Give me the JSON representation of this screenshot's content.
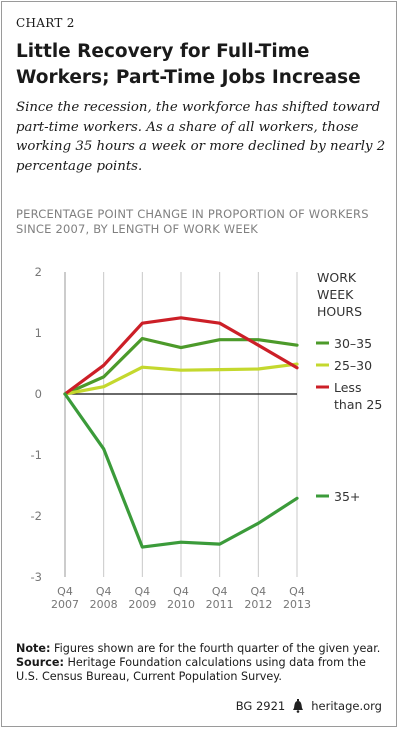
{
  "header": {
    "chart_label": "CHART 2",
    "title": "Little Recovery for Full-Time Workers; Part-Time Jobs Increase",
    "subtitle": "Since the recession, the workforce has shifted toward part-time workers. As a share of all workers, those working 35 hours a week or more declined by nearly 2 percentage points."
  },
  "chart_data": {
    "type": "line",
    "ylabel": "PERCENTAGE POINT CHANGE IN PROPORTION OF WORKERS SINCE 2007, BY LENGTH OF WORK WEEK",
    "xlabel": "",
    "categories": [
      {
        "q": "Q4",
        "year": "2007"
      },
      {
        "q": "Q4",
        "year": "2008"
      },
      {
        "q": "Q4",
        "year": "2009"
      },
      {
        "q": "Q4",
        "year": "2010"
      },
      {
        "q": "Q4",
        "year": "2011"
      },
      {
        "q": "Q4",
        "year": "2012"
      },
      {
        "q": "Q4",
        "year": "2013"
      }
    ],
    "ylim": [
      -3,
      2
    ],
    "yticks": [
      "2",
      "1",
      "0",
      "-1",
      "-2",
      "-3"
    ],
    "grid": false,
    "legend_title": "WORK WEEK HOURS",
    "legend_placement": "right",
    "series": [
      {
        "name": "30–35",
        "color": "#4c9a2a",
        "values": [
          0,
          0.28,
          0.91,
          0.76,
          0.89,
          0.89,
          0.8
        ]
      },
      {
        "name": "25–30",
        "color": "#c4d82e",
        "values": [
          0,
          0.12,
          0.44,
          0.39,
          0.4,
          0.41,
          0.49
        ]
      },
      {
        "name": "Less than 25",
        "color": "#cc1f27",
        "values": [
          0,
          0.47,
          1.16,
          1.25,
          1.16,
          0.8,
          0.43
        ]
      },
      {
        "name": "35+",
        "color": "#3b9b3a",
        "values": [
          0,
          -0.9,
          -2.51,
          -2.43,
          -2.46,
          -2.12,
          -1.71
        ]
      }
    ]
  },
  "notes": {
    "note_label": "Note:",
    "note_text": "Figures shown are for the fourth quarter of the given year.",
    "source_label": "Source:",
    "source_text": "Heritage Foundation calculations using data from the U.S. Census Bureau, Current Population Survey."
  },
  "footer": {
    "report_id": "BG 2921",
    "site": "heritage.org",
    "logo_icon": "liberty-bell-icon"
  }
}
